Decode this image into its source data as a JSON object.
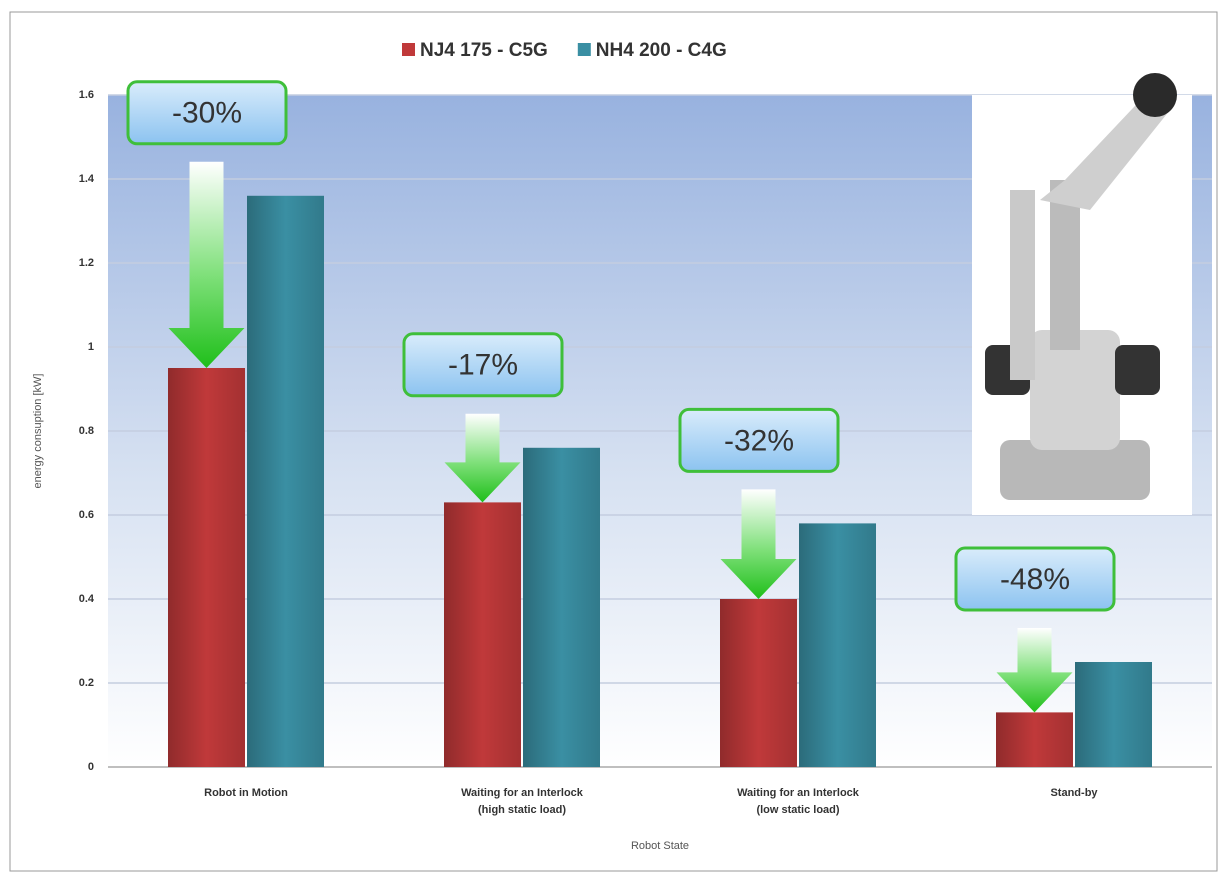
{
  "chart_data": {
    "type": "bar",
    "y_label": "energy consuption [kW]",
    "x_label": "Robot State",
    "categories": [
      [
        "Robot in Motion"
      ],
      [
        "Waiting for an Interlock",
        "(high static load)"
      ],
      [
        "Waiting for an Interlock",
        "(low static load)"
      ],
      [
        "Stand-by"
      ]
    ],
    "series": [
      {
        "name": "NJ4 175 - C5G",
        "color": "#c0393a",
        "values": [
          0.95,
          0.63,
          0.4,
          0.13
        ]
      },
      {
        "name": "NH4 200 - C4G",
        "color": "#3a8fa3",
        "values": [
          1.36,
          0.76,
          0.58,
          0.25
        ]
      }
    ],
    "annotations": [
      "-30%",
      "-17%",
      "-32%",
      "-48%"
    ],
    "ylim": [
      0,
      1.6
    ],
    "yticks": [
      0,
      0.2,
      0.4,
      0.6,
      0.8,
      1,
      1.2,
      1.4,
      1.6
    ],
    "grid": true
  }
}
